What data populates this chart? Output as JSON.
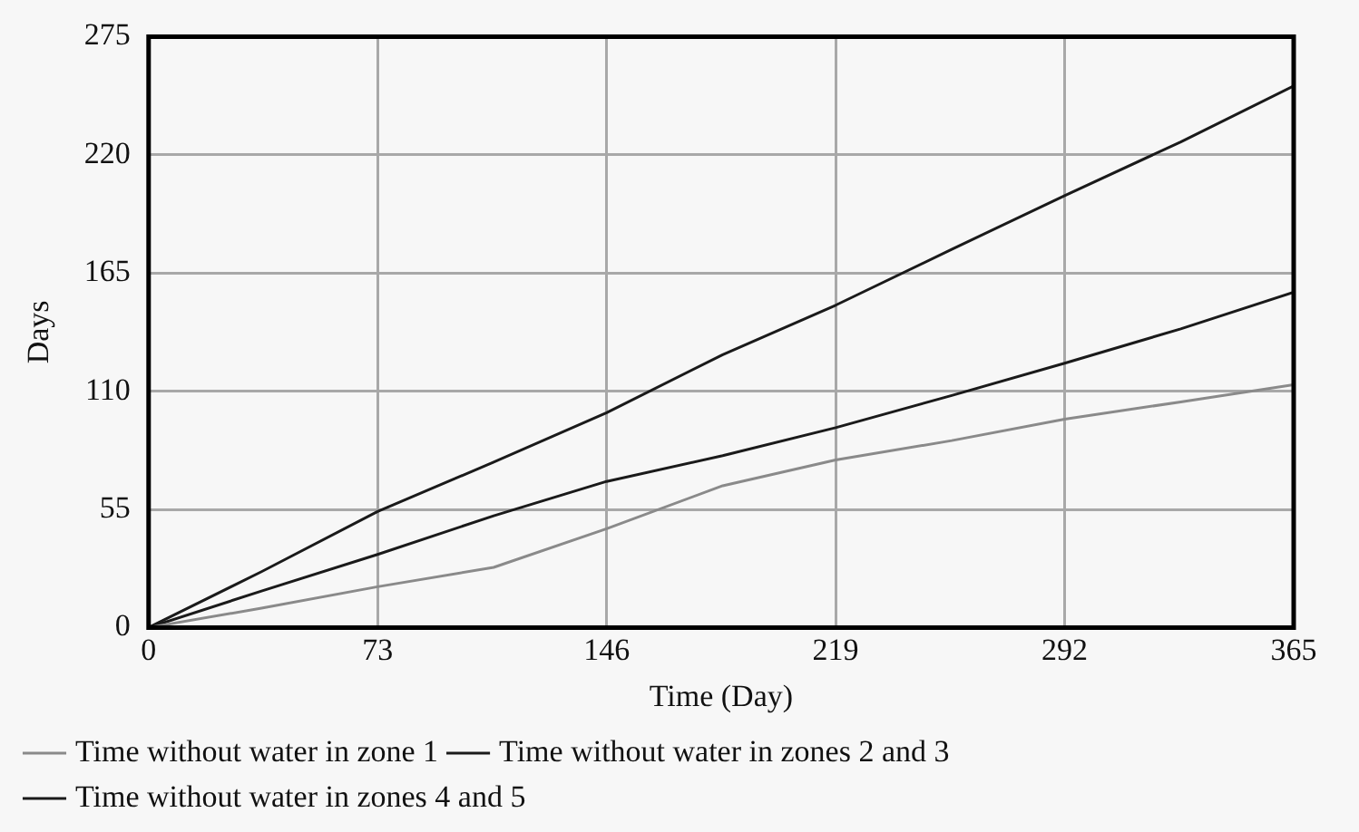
{
  "chart_data": {
    "type": "line",
    "xlabel": "Time (Day)",
    "ylabel": "Days",
    "x": [
      0,
      36,
      73,
      110,
      146,
      183,
      219,
      256,
      292,
      329,
      365
    ],
    "series": [
      {
        "name": "Time without water in zone 1",
        "color": "#8a8a8a",
        "values": [
          0,
          9,
          19,
          28,
          46,
          66,
          78,
          87,
          97,
          105,
          113
        ]
      },
      {
        "name": "Time without water in zones 2 and 3",
        "color": "#1a1a1a",
        "values": [
          0,
          17,
          34,
          52,
          68,
          80,
          93,
          108,
          123,
          139,
          156
        ]
      },
      {
        "name": "Time without water in zones 4 and 5",
        "color": "#1a1a1a",
        "values": [
          0,
          26,
          54,
          77,
          100,
          127,
          150,
          176,
          201,
          226,
          252
        ]
      }
    ],
    "xlim": [
      0,
      365
    ],
    "xticks": [
      0,
      73,
      146,
      219,
      292,
      365
    ],
    "ylim": [
      0,
      275
    ],
    "yticks": [
      0,
      55,
      110,
      165,
      220,
      275
    ],
    "grid": true,
    "legend": "bottom",
    "marker": "none",
    "line_style": "solid"
  }
}
